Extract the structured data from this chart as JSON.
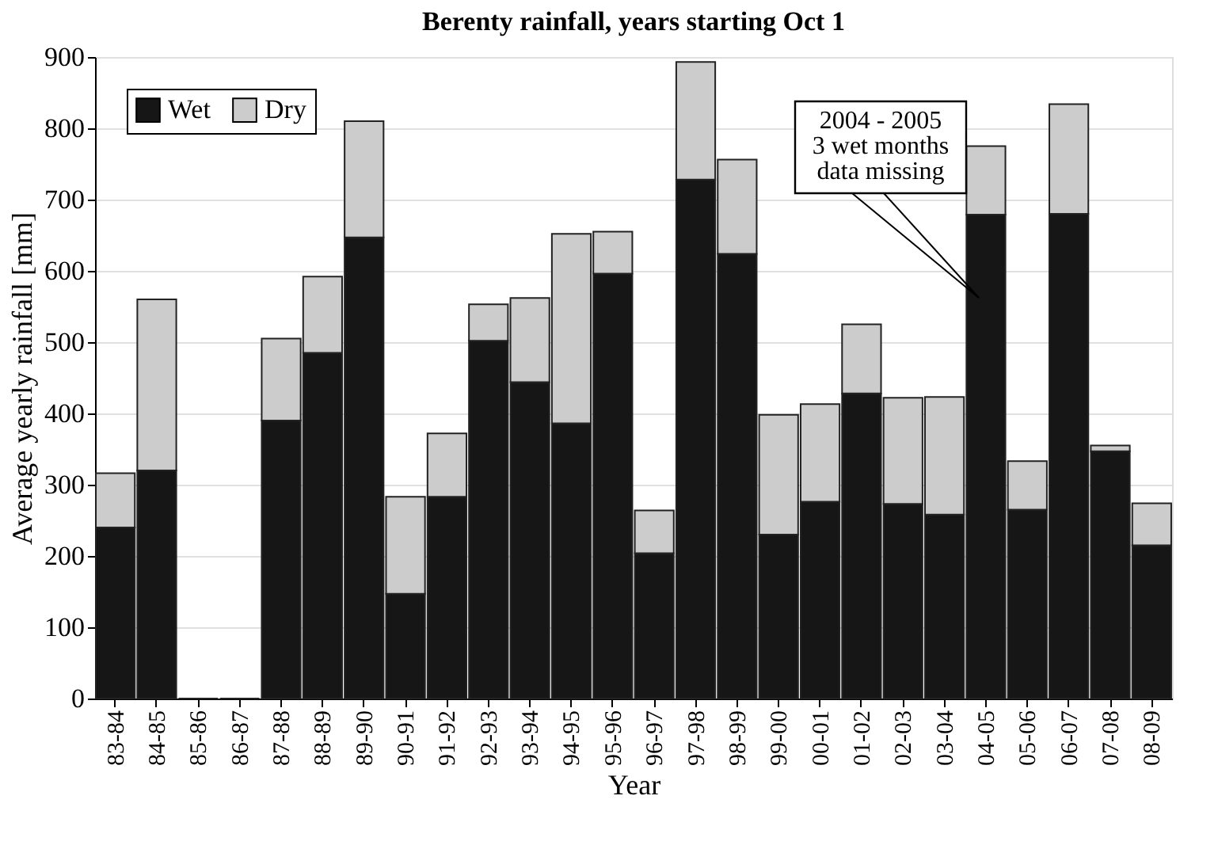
{
  "chart_data": {
    "type": "bar",
    "title": "Berenty rainfall, years starting Oct 1",
    "xlabel": "Year",
    "ylabel": "Average yearly rainfall [mm]",
    "categories": [
      "83-84",
      "84-85",
      "85-86",
      "86-87",
      "87-88",
      "88-89",
      "89-90",
      "90-91",
      "91-92",
      "92-93",
      "93-94",
      "94-95",
      "95-96",
      "96-97",
      "97-98",
      "98-99",
      "99-00",
      "00-01",
      "01-02",
      "02-03",
      "03-04",
      "04-05",
      "05-06",
      "06-07",
      "07-08",
      "08-09"
    ],
    "stacked": true,
    "series": [
      {
        "name": "Wet",
        "color": "#161616",
        "values": [
          240,
          320,
          0,
          0,
          390,
          485,
          647,
          147,
          283,
          502,
          444,
          386,
          596,
          204,
          728,
          624,
          230,
          276,
          428,
          273,
          258,
          679,
          265,
          680,
          347,
          215
        ]
      },
      {
        "name": "Dry",
        "color": "#cccccc",
        "values": [
          76,
          240,
          0,
          0,
          115,
          107,
          163,
          136,
          89,
          51,
          118,
          266,
          59,
          60,
          165,
          132,
          168,
          137,
          97,
          149,
          165,
          96,
          68,
          154,
          8,
          59
        ]
      }
    ],
    "ylim": [
      0,
      900
    ],
    "yticks": [
      0,
      100,
      200,
      300,
      400,
      500,
      600,
      700,
      800,
      900
    ],
    "grid": "y",
    "legend": "top left",
    "annotations": [
      "2004 - 2005\n3 wet months\ndata missing"
    ]
  }
}
